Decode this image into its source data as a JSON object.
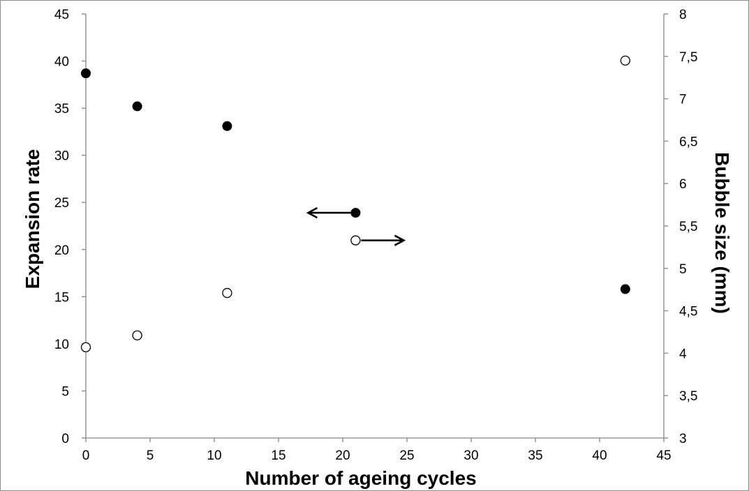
{
  "chart_data": {
    "type": "scatter",
    "title": "",
    "xlabel": "Number of ageing cycles",
    "ylabel_left": "Expansion rate",
    "ylabel_right": "Bubble size (mm)",
    "xlim": [
      0,
      45
    ],
    "ylim_left": [
      0,
      45
    ],
    "ylim_right": [
      3,
      8
    ],
    "x_ticks": [
      "0",
      "5",
      "10",
      "15",
      "20",
      "25",
      "30",
      "35",
      "40",
      "45"
    ],
    "y_left_ticks": [
      "0",
      "5",
      "10",
      "15",
      "20",
      "25",
      "30",
      "35",
      "40",
      "45"
    ],
    "y_right_ticks": [
      "3",
      "3,5",
      "4",
      "4,5",
      "5",
      "5,5",
      "6",
      "6,5",
      "7",
      "7,5",
      "8"
    ],
    "grid": false,
    "legend": "none",
    "series": [
      {
        "axis": "left",
        "marker": "filled-circle",
        "color": "#000000",
        "x": [
          0,
          4,
          11,
          21,
          42
        ],
        "y": [
          38.7,
          35.2,
          33.1,
          23.9,
          15.8
        ]
      },
      {
        "axis": "right",
        "marker": "open-circle",
        "color": "#000000",
        "x": [
          0,
          4,
          11,
          21,
          42
        ],
        "y": [
          4.07,
          4.21,
          4.71,
          5.33,
          7.45
        ]
      }
    ],
    "annotations": [
      {
        "type": "arrow",
        "direction": "left",
        "points_to": "left-axis",
        "near_x": 21,
        "near_y": 23.9,
        "axis": "left"
      },
      {
        "type": "arrow",
        "direction": "right",
        "points_to": "right-axis",
        "near_x": 21,
        "near_y": 5.33,
        "axis": "right"
      }
    ]
  }
}
